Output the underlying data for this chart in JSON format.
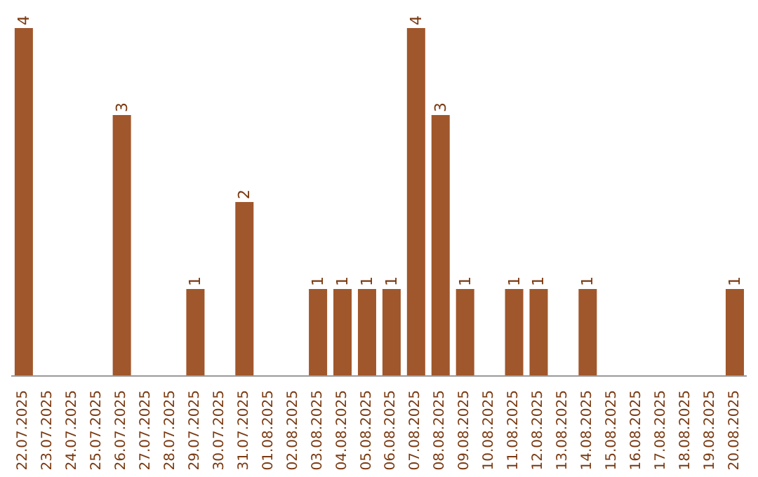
{
  "chart_data": {
    "type": "bar",
    "categories": [
      "22.07.2025",
      "23.07.2025",
      "24.07.2025",
      "25.07.2025",
      "26.07.2025",
      "27.07.2025",
      "28.07.2025",
      "29.07.2025",
      "30.07.2025",
      "31.07.2025",
      "01.08.2025",
      "02.08.2025",
      "03.08.2025",
      "04.08.2025",
      "05.08.2025",
      "06.08.2025",
      "07.08.2025",
      "08.08.2025",
      "09.08.2025",
      "10.08.2025",
      "11.08.2025",
      "12.08.2025",
      "13.08.2025",
      "14.08.2025",
      "15.08.2025",
      "16.08.2025",
      "17.08.2025",
      "18.08.2025",
      "19.08.2025",
      "20.08.2025"
    ],
    "values": [
      4,
      0,
      0,
      0,
      3,
      0,
      0,
      1,
      0,
      2,
      0,
      0,
      1,
      1,
      1,
      1,
      4,
      3,
      1,
      0,
      1,
      1,
      0,
      1,
      0,
      0,
      0,
      0,
      0,
      1
    ],
    "value_labels": [
      "4",
      null,
      null,
      null,
      "3",
      null,
      null,
      "1",
      null,
      "2",
      null,
      null,
      "1",
      "1",
      "1",
      "1",
      "4",
      "3",
      "1",
      null,
      "1",
      "1",
      null,
      "1",
      null,
      null,
      null,
      null,
      null,
      "1"
    ],
    "color": "#a0572b",
    "grid": false,
    "legend": false
  }
}
